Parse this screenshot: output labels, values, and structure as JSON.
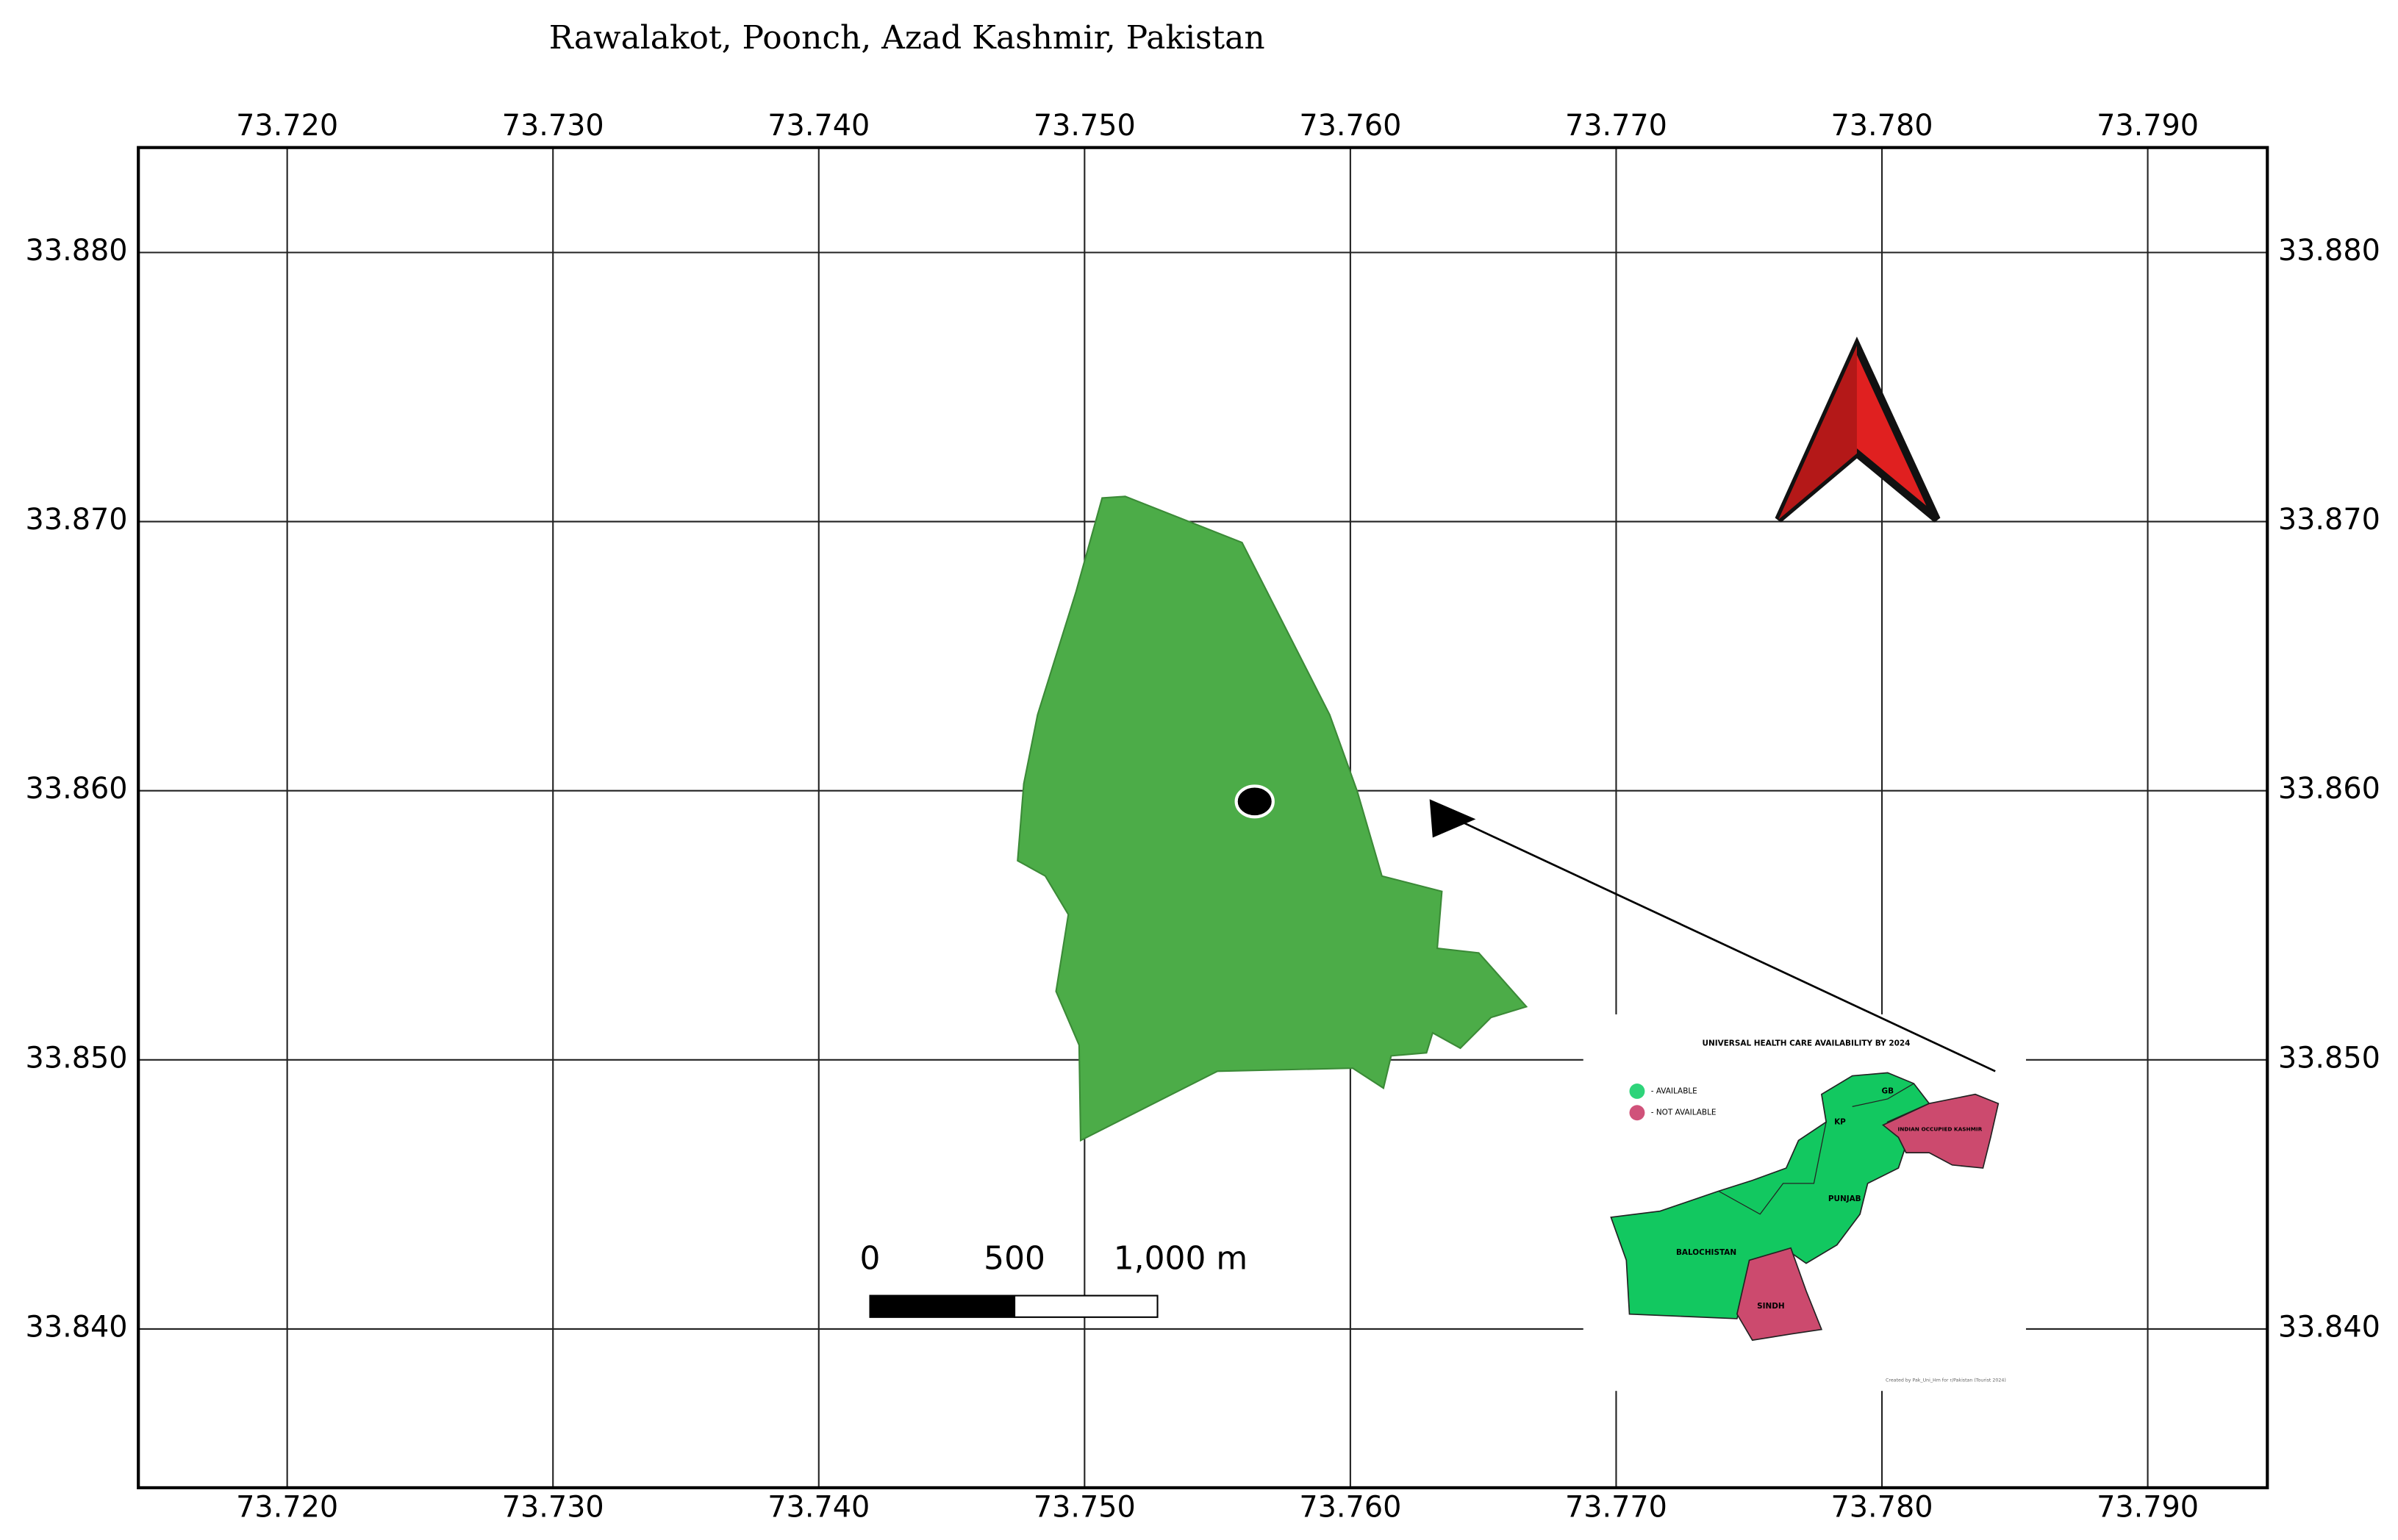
{
  "title": "Rawalakot, Poonch, Azad Kashmir, Pakistan",
  "map": {
    "xlim": [
      73.7144,
      73.7945
    ],
    "ylim": [
      33.8341,
      33.8839
    ],
    "xticks": [
      {
        "value": 73.72,
        "label": "73.720"
      },
      {
        "value": 73.73,
        "label": "73.730"
      },
      {
        "value": 73.74,
        "label": "73.740"
      },
      {
        "value": 73.75,
        "label": "73.750"
      },
      {
        "value": 73.76,
        "label": "73.760"
      },
      {
        "value": 73.77,
        "label": "73.770"
      },
      {
        "value": 73.78,
        "label": "73.780"
      },
      {
        "value": 73.79,
        "label": "73.790"
      }
    ],
    "yticks": [
      {
        "value": 33.84,
        "label": "33.840"
      },
      {
        "value": 33.85,
        "label": "33.850"
      },
      {
        "value": 33.86,
        "label": "33.860"
      },
      {
        "value": 33.87,
        "label": "33.870"
      },
      {
        "value": 33.88,
        "label": "33.880"
      }
    ],
    "marker": {
      "lon": 73.7564,
      "lat": 33.8596
    }
  },
  "scale_bar": {
    "labels": [
      "0",
      "500",
      "1,000 m"
    ]
  },
  "inset": {
    "title": "UNIVERSAL HEALTH CARE AVAILABILITY BY 2024",
    "legend": [
      "- AVAILABLE",
      "- NOT AVAILABLE"
    ],
    "regions": [
      "GB",
      "KP",
      "INDIAN OCCUPIED KASHMIR",
      "PUNJAB",
      "BALOCHISTAN",
      "SINDH"
    ],
    "credit": "Created by Pak_Uni_Hm for r/Pakistan (Tourist 2024)"
  }
}
